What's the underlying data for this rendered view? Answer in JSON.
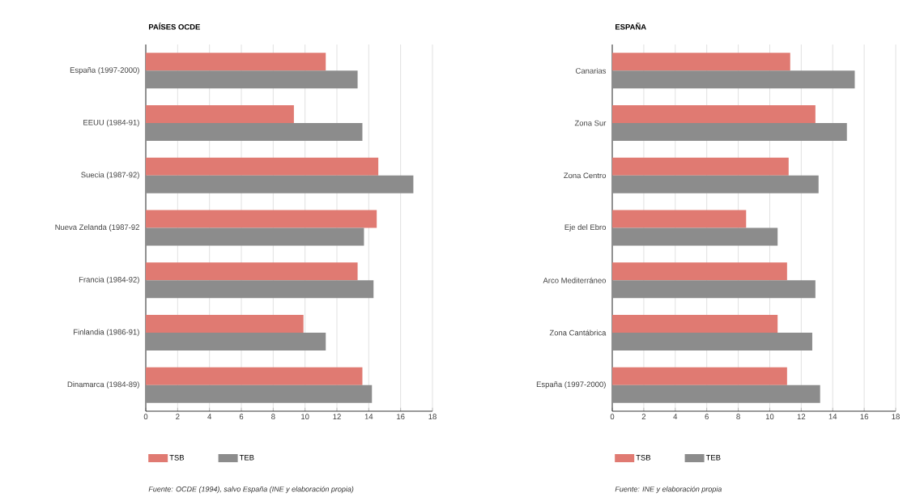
{
  "chart_data": [
    {
      "type": "bar",
      "orientation": "horizontal",
      "title": "PAÍSES OCDE",
      "categories": [
        "España (1997-2000)",
        "EEUU (1984-91)",
        "Suecia (1987-92)",
        "Nueva Zelanda (1987-92",
        "Francia (1984-92)",
        "Finlandia (1986-91)",
        "Dinamarca (1984-89)"
      ],
      "series": [
        {
          "name": "TSB",
          "color": "#e07a72",
          "values": [
            11.3,
            9.3,
            14.6,
            14.5,
            13.3,
            9.9,
            13.6
          ]
        },
        {
          "name": "TEB",
          "color": "#8c8c8c",
          "values": [
            13.3,
            13.6,
            16.8,
            13.7,
            14.3,
            11.3,
            14.2
          ]
        }
      ],
      "xlim": [
        0,
        18
      ],
      "xticks": [
        0,
        2,
        4,
        6,
        8,
        10,
        12,
        14,
        16,
        18
      ],
      "grid": "x",
      "legend": "bottom",
      "annotations": [
        "Fuente: OCDE (1994), salvo España (INE y elaboración propia)"
      ]
    },
    {
      "type": "bar",
      "orientation": "horizontal",
      "title": "ESPAÑA",
      "categories": [
        "Canarias",
        "Zona Sur",
        "Zona Centro",
        "Eje del Ebro",
        "Arco Mediterráneo",
        "Zona Cantábrica",
        "España (1997-2000)"
      ],
      "series": [
        {
          "name": "TSB",
          "color": "#e07a72",
          "values": [
            11.3,
            12.9,
            11.2,
            8.5,
            11.1,
            10.5,
            11.1
          ]
        },
        {
          "name": "TEB",
          "color": "#8c8c8c",
          "values": [
            15.4,
            14.9,
            13.1,
            10.5,
            12.9,
            12.7,
            13.2
          ]
        }
      ],
      "xlim": [
        0,
        18
      ],
      "xticks": [
        0,
        2,
        4,
        6,
        8,
        10,
        12,
        14,
        16,
        18
      ],
      "grid": "x",
      "legend": "bottom",
      "annotations": [
        "Fuente: INE y elaboración propia"
      ]
    }
  ]
}
